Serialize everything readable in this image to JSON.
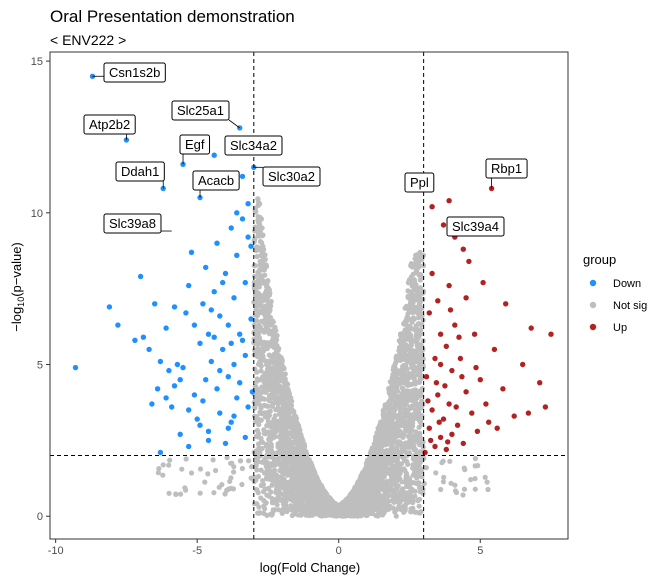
{
  "chart_data": {
    "type": "scatter",
    "title": "Oral Presentation demonstration",
    "subtitle": "< ENV222 >",
    "xlabel": "log(Fold Change)",
    "ylabel_main": "−log",
    "ylabel_sub": "10",
    "ylabel_rest": "(p−value)",
    "xlim": [
      -10.2,
      8.1
    ],
    "ylim": [
      -0.75,
      15.3
    ],
    "x_ticks": [
      -10,
      -5,
      0,
      5
    ],
    "y_ticks": [
      0,
      5,
      10,
      15
    ],
    "fc_threshold": [
      -3,
      3
    ],
    "p_threshold": 2,
    "grid": false,
    "legend": {
      "title": "group",
      "position": "right",
      "entries": [
        {
          "label": "Down",
          "color": "#1e90ff"
        },
        {
          "label": "Not sig",
          "color": "#bebebe"
        },
        {
          "label": "Up",
          "color": "#b22222"
        }
      ]
    },
    "series": [
      {
        "name": "Down",
        "color": "#1e90ff",
        "points": [
          [
            -9.3,
            4.9
          ],
          [
            -8.7,
            14.5
          ],
          [
            -8.1,
            6.9
          ],
          [
            -7.8,
            6.3
          ],
          [
            -7.5,
            12.4
          ],
          [
            -7.2,
            5.8
          ],
          [
            -7.0,
            7.9
          ],
          [
            -6.9,
            5.9
          ],
          [
            -6.7,
            5.5
          ],
          [
            -6.6,
            3.7
          ],
          [
            -6.5,
            7.0
          ],
          [
            -6.4,
            4.2
          ],
          [
            -6.3,
            5.1
          ],
          [
            -6.2,
            10.8
          ],
          [
            -6.1,
            6.2
          ],
          [
            -6.0,
            4.8
          ],
          [
            -5.9,
            3.6
          ],
          [
            -5.8,
            6.9
          ],
          [
            -5.8,
            4.3
          ],
          [
            -5.7,
            5.0
          ],
          [
            -5.6,
            2.7
          ],
          [
            -5.5,
            11.6
          ],
          [
            -5.5,
            4.9
          ],
          [
            -5.4,
            6.7
          ],
          [
            -5.3,
            7.6
          ],
          [
            -5.3,
            3.5
          ],
          [
            -5.2,
            8.7
          ],
          [
            -5.1,
            6.3
          ],
          [
            -5.1,
            4.0
          ],
          [
            -5.0,
            3.2
          ],
          [
            -4.9,
            10.5
          ],
          [
            -4.9,
            5.7
          ],
          [
            -4.8,
            7.0
          ],
          [
            -4.8,
            3.8
          ],
          [
            -4.7,
            8.2
          ],
          [
            -4.7,
            4.5
          ],
          [
            -4.6,
            6.0
          ],
          [
            -4.6,
            2.8
          ],
          [
            -4.5,
            5.1
          ],
          [
            -4.4,
            11.9
          ],
          [
            -4.4,
            7.4
          ],
          [
            -4.3,
            4.2
          ],
          [
            -4.3,
            9.0
          ],
          [
            -4.2,
            6.6
          ],
          [
            -4.2,
            3.4
          ],
          [
            -4.1,
            5.5
          ],
          [
            -4.0,
            10.9
          ],
          [
            -4.0,
            8.0
          ],
          [
            -3.9,
            4.6
          ],
          [
            -3.9,
            6.3
          ],
          [
            -3.8,
            3.1
          ],
          [
            -3.8,
            9.5
          ],
          [
            -3.7,
            7.2
          ],
          [
            -3.7,
            5.0
          ],
          [
            -3.6,
            8.6
          ],
          [
            -3.6,
            3.9
          ],
          [
            -3.5,
            6.0
          ],
          [
            -3.5,
            4.4
          ],
          [
            -3.4,
            11.2
          ],
          [
            -3.4,
            9.8
          ],
          [
            -3.3,
            7.7
          ],
          [
            -3.3,
            5.3
          ],
          [
            -3.2,
            10.3
          ],
          [
            -3.2,
            3.6
          ],
          [
            -3.1,
            8.9
          ],
          [
            -3.1,
            6.5
          ],
          [
            -3.05,
            4.1
          ],
          [
            -3.3,
            2.6
          ],
          [
            -4.6,
            2.5
          ],
          [
            -5.3,
            2.3
          ],
          [
            -6.3,
            2.1
          ],
          [
            -3.9,
            2.9
          ],
          [
            -3.5,
            12.8
          ],
          [
            -3.2,
            12.2
          ],
          [
            -3.0,
            11.5
          ],
          [
            -4.2,
            4.8
          ],
          [
            -3.7,
            3.3
          ],
          [
            -4.9,
            3.0
          ],
          [
            -3.4,
            5.8
          ],
          [
            -4.4,
            5.9
          ],
          [
            -5.6,
            4.5
          ],
          [
            -6.1,
            3.9
          ],
          [
            -3.6,
            10.0
          ],
          [
            -4.1,
            7.7
          ],
          [
            -4.5,
            6.8
          ],
          [
            -3.2,
            9.2
          ],
          [
            -3.8,
            5.7
          ],
          [
            -4.0,
            2.4
          ]
        ]
      },
      {
        "name": "Up",
        "color": "#b22222",
        "points": [
          [
            3.05,
            2.1
          ],
          [
            3.1,
            4.6
          ],
          [
            3.2,
            6.7
          ],
          [
            3.2,
            2.9
          ],
          [
            3.3,
            8.0
          ],
          [
            3.3,
            3.5
          ],
          [
            3.4,
            5.2
          ],
          [
            3.4,
            2.3
          ],
          [
            3.5,
            7.1
          ],
          [
            3.5,
            4.0
          ],
          [
            3.6,
            6.0
          ],
          [
            3.6,
            2.6
          ],
          [
            3.7,
            9.6
          ],
          [
            3.7,
            3.2
          ],
          [
            3.8,
            5.6
          ],
          [
            3.8,
            2.2
          ],
          [
            3.9,
            7.6
          ],
          [
            3.9,
            3.7
          ],
          [
            4.0,
            4.8
          ],
          [
            4.0,
            2.7
          ],
          [
            4.1,
            6.3
          ],
          [
            4.1,
            9.2
          ],
          [
            4.2,
            3.0
          ],
          [
            4.3,
            5.2
          ],
          [
            4.4,
            2.4
          ],
          [
            4.5,
            7.2
          ],
          [
            4.5,
            4.1
          ],
          [
            4.6,
            8.4
          ],
          [
            4.7,
            3.4
          ],
          [
            4.8,
            6.0
          ],
          [
            4.9,
            2.8
          ],
          [
            5.0,
            4.5
          ],
          [
            5.1,
            7.7
          ],
          [
            5.2,
            3.7
          ],
          [
            5.4,
            10.8
          ],
          [
            5.5,
            5.5
          ],
          [
            5.6,
            2.9
          ],
          [
            5.8,
            4.2
          ],
          [
            5.9,
            7.0
          ],
          [
            6.2,
            3.3
          ],
          [
            6.5,
            5.0
          ],
          [
            6.7,
            3.4
          ],
          [
            6.8,
            6.2
          ],
          [
            7.1,
            4.4
          ],
          [
            7.3,
            3.6
          ],
          [
            7.5,
            6.0
          ],
          [
            3.3,
            10.2
          ],
          [
            3.9,
            10.4
          ],
          [
            4.4,
            8.8
          ],
          [
            3.15,
            3.8
          ],
          [
            3.25,
            2.5
          ],
          [
            3.45,
            4.4
          ],
          [
            3.55,
            3.1
          ],
          [
            3.75,
            4.3
          ],
          [
            3.85,
            2.45
          ],
          [
            4.15,
            3.6
          ],
          [
            4.35,
            4.6
          ],
          [
            3.6,
            5.0
          ],
          [
            3.95,
            6.8
          ],
          [
            4.25,
            5.9
          ],
          [
            4.85,
            4.9
          ],
          [
            5.3,
            3.1
          ]
        ]
      },
      {
        "name": "Not sig",
        "color": "#bebebe",
        "points": []
      }
    ],
    "labels": [
      {
        "text": "Csn1s2b",
        "x": -8.7,
        "y": 14.5
      },
      {
        "text": "Atp2b2",
        "x": -7.5,
        "y": 12.4
      },
      {
        "text": "Slc25a1",
        "x": -3.5,
        "y": 12.8
      },
      {
        "text": "Egf",
        "x": -5.5,
        "y": 11.6
      },
      {
        "text": "Slc34a2",
        "x": -3.2,
        "y": 12.2
      },
      {
        "text": "Ddah1",
        "x": -6.2,
        "y": 10.8
      },
      {
        "text": "Acacb",
        "x": -4.9,
        "y": 10.5
      },
      {
        "text": "Slc30a2",
        "x": -3.0,
        "y": 11.5
      },
      {
        "text": "Slc39a8",
        "x": -5.9,
        "y": 9.4
      },
      {
        "text": "Ppl",
        "x": 3.0,
        "y": 10.8
      },
      {
        "text": "Rbp1",
        "x": 5.4,
        "y": 10.8
      },
      {
        "text": "Slc39a4",
        "x": 4.0,
        "y": 9.6
      }
    ]
  }
}
